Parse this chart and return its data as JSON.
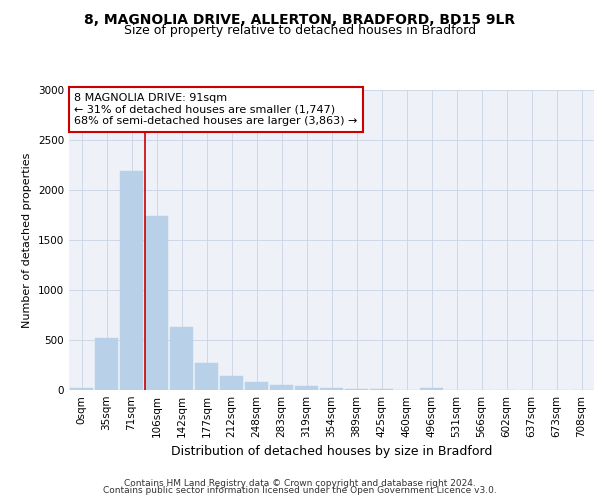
{
  "title_line1": "8, MAGNOLIA DRIVE, ALLERTON, BRADFORD, BD15 9LR",
  "title_line2": "Size of property relative to detached houses in Bradford",
  "xlabel": "Distribution of detached houses by size in Bradford",
  "ylabel": "Number of detached properties",
  "bar_labels": [
    "0sqm",
    "35sqm",
    "71sqm",
    "106sqm",
    "142sqm",
    "177sqm",
    "212sqm",
    "248sqm",
    "283sqm",
    "319sqm",
    "354sqm",
    "389sqm",
    "425sqm",
    "460sqm",
    "496sqm",
    "531sqm",
    "566sqm",
    "602sqm",
    "637sqm",
    "673sqm",
    "708sqm"
  ],
  "bar_values": [
    20,
    520,
    2190,
    1740,
    630,
    270,
    140,
    80,
    50,
    40,
    25,
    15,
    10,
    5,
    20,
    3,
    3,
    2,
    2,
    2,
    2
  ],
  "bar_color": "#b8d0e8",
  "bar_edgecolor": "#b8d0e8",
  "vline_color": "#cc0000",
  "annotation_text": "8 MAGNOLIA DRIVE: 91sqm\n← 31% of detached houses are smaller (1,747)\n68% of semi-detached houses are larger (3,863) →",
  "annotation_box_facecolor": "#ffffff",
  "annotation_box_edgecolor": "#cc0000",
  "ylim": [
    0,
    3000
  ],
  "yticks": [
    0,
    500,
    1000,
    1500,
    2000,
    2500,
    3000
  ],
  "background_color": "#eef2f8",
  "footer_line1": "Contains HM Land Registry data © Crown copyright and database right 2024.",
  "footer_line2": "Contains public sector information licensed under the Open Government Licence v3.0.",
  "title_fontsize": 10,
  "subtitle_fontsize": 9,
  "xlabel_fontsize": 9,
  "ylabel_fontsize": 8,
  "tick_fontsize": 7.5,
  "annotation_fontsize": 8,
  "footer_fontsize": 6.5
}
